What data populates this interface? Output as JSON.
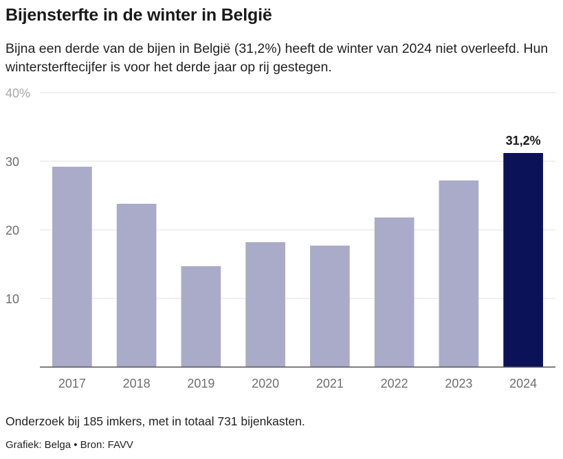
{
  "title": "Bijensterfte in de winter in België",
  "subtitle": "Bijna een derde van de bijen in België (31,2%) heeft de winter van 2024 niet overleefd. Hun wintersterftecijfer is voor het derde jaar op rij gestegen.",
  "footnote": "Onderzoek bij 185 imkers, met in totaal 731 bijenkasten.",
  "credit": "Grafiek: Belga • Bron: FAVV",
  "colors": {
    "bar": "#a9abc8",
    "highlight": "#0c1257",
    "grid": "#e2e2e2",
    "axis": "#555555",
    "tick_text": "#6e6e6e"
  },
  "chart_data": {
    "type": "bar",
    "categories": [
      "2017",
      "2018",
      "2019",
      "2020",
      "2021",
      "2022",
      "2023",
      "2024"
    ],
    "values": [
      29.2,
      23.8,
      14.7,
      18.2,
      17.7,
      21.8,
      27.2,
      31.2
    ],
    "highlight_index": 7,
    "annotation": "31,2%",
    "ylim": [
      0,
      40
    ],
    "yticks": [
      10,
      20,
      30,
      40
    ],
    "ytick_labels": [
      "10",
      "20",
      "30",
      "40%"
    ],
    "grid": true,
    "xlabel": "",
    "ylabel": ""
  }
}
